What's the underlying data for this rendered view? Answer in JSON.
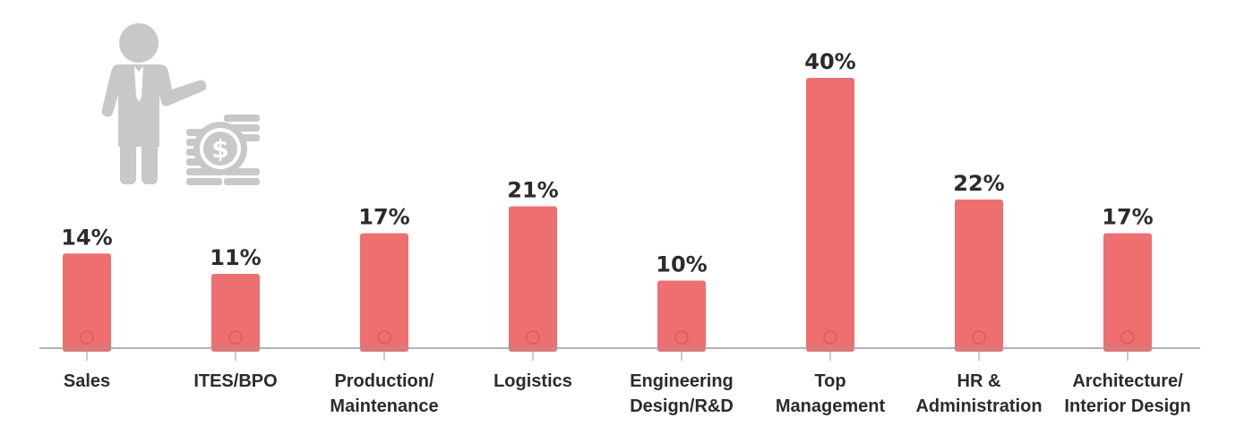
{
  "chart_data": {
    "type": "bar",
    "title": "",
    "xlabel": "",
    "ylabel": "",
    "unit": "%",
    "categories": [
      [
        "Sales"
      ],
      [
        "ITES/BPO"
      ],
      [
        "Production/",
        "Maintenance"
      ],
      [
        "Logistics"
      ],
      [
        "Engineering",
        "Design/R&D"
      ],
      [
        "Top",
        "Management"
      ],
      [
        "HR &",
        "Administration"
      ],
      [
        "Architecture/",
        "Interior Design"
      ]
    ],
    "values": [
      14,
      11,
      17,
      21,
      10,
      40,
      22,
      17
    ],
    "value_labels": [
      "14%",
      "11%",
      "17%",
      "21%",
      "10%",
      "40%",
      "22%",
      "17%"
    ],
    "ylim": [
      0,
      40
    ],
    "grid": false,
    "legend": "none",
    "bar_color": "#ee6f70",
    "axis_color": "#9a9a9a"
  },
  "illustration": {
    "icons": [
      "businessman-icon",
      "coin-stack-icon",
      "dollar-coin-icon"
    ],
    "color": "#c8c8c8"
  }
}
